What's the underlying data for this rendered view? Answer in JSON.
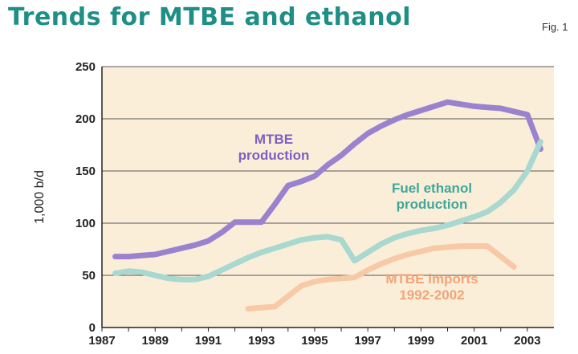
{
  "header": {
    "title": "Trends for MTBE and ethanol",
    "fig_label": "Fig. 1"
  },
  "colors": {
    "title": "#1e8f85",
    "plot_bg": "#fbeed9",
    "grid": "#555555"
  },
  "chart_data": {
    "type": "line",
    "title": "Trends for MTBE and ethanol",
    "xlabel": "",
    "ylabel": "1,000 b/d",
    "xlim": [
      1987,
      2004
    ],
    "ylim": [
      0,
      250
    ],
    "x_ticks": [
      "1987",
      "1989",
      "1991",
      "1993",
      "1995",
      "1997",
      "1999",
      "2001",
      "2003"
    ],
    "y_ticks": [
      "0",
      "50",
      "100",
      "150",
      "200",
      "250"
    ],
    "grid": true,
    "series": [
      {
        "name": "MTBE production",
        "label_lines": [
          "MTBE",
          "production"
        ],
        "color": "#9b82cf",
        "label_color": "#7d5fc2",
        "x": [
          1987.5,
          1988.0,
          1988.5,
          1989.0,
          1989.5,
          1990.0,
          1990.5,
          1991.0,
          1991.5,
          1992.0,
          1992.5,
          1993.0,
          1993.5,
          1994.0,
          1994.5,
          1995.0,
          1995.5,
          1996.0,
          1996.5,
          1997.0,
          1997.5,
          1998.0,
          1998.5,
          1999.0,
          1999.5,
          2000.0,
          2000.5,
          2001.0,
          2001.5,
          2002.0,
          2002.5,
          2003.0,
          2003.5
        ],
        "values": [
          68,
          68,
          69,
          70,
          73,
          76,
          79,
          83,
          91,
          101,
          101,
          101,
          118,
          136,
          140,
          145,
          156,
          165,
          176,
          186,
          193,
          199,
          204,
          208,
          212,
          216,
          214,
          212,
          211,
          210,
          207,
          204,
          171
        ]
      },
      {
        "name": "Fuel ethanol production",
        "label_lines": [
          "Fuel ethanol",
          "production"
        ],
        "color": "#a8d8cf",
        "label_color": "#3ea89a",
        "x": [
          1987.5,
          1988.0,
          1988.5,
          1989.0,
          1989.5,
          1990.0,
          1990.5,
          1991.0,
          1991.5,
          1992.0,
          1992.5,
          1993.0,
          1993.5,
          1994.0,
          1994.5,
          1995.0,
          1995.5,
          1996.0,
          1996.5,
          1997.0,
          1997.5,
          1998.0,
          1998.5,
          1999.0,
          1999.5,
          2000.0,
          2000.5,
          2001.0,
          2001.5,
          2002.0,
          2002.5,
          2003.0,
          2003.5
        ],
        "values": [
          52,
          54,
          53,
          50,
          47,
          46,
          46,
          49,
          55,
          61,
          67,
          72,
          76,
          80,
          84,
          86,
          87,
          84,
          64,
          72,
          80,
          86,
          90,
          93,
          95,
          98,
          102,
          106,
          111,
          120,
          132,
          150,
          178
        ]
      },
      {
        "name": "MTBE imports 1992-2002",
        "label_lines": [
          "MTBE imports",
          "1992-2002"
        ],
        "color": "#f7c9a6",
        "label_color": "#f2a478",
        "x": [
          1992.5,
          1993.0,
          1993.5,
          1994.0,
          1994.5,
          1995.0,
          1995.5,
          1996.0,
          1996.5,
          1997.0,
          1997.5,
          1998.0,
          1998.5,
          1999.0,
          1999.5,
          2000.0,
          2000.5,
          2001.0,
          2001.5,
          2002.0,
          2002.5
        ],
        "values": [
          18,
          19,
          20,
          30,
          40,
          44,
          46,
          47,
          48,
          55,
          61,
          66,
          70,
          73,
          76,
          77,
          78,
          78,
          78,
          68,
          58
        ]
      }
    ]
  }
}
